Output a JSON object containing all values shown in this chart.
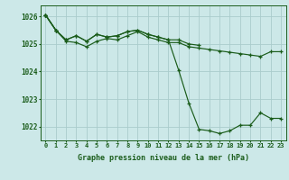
{
  "title": "Graphe pression niveau de la mer (hPa)",
  "bg_color": "#cce8e8",
  "grid_color": "#aacccc",
  "line_color": "#1a5c1a",
  "xlim": [
    -0.5,
    23.5
  ],
  "ylim": [
    1021.5,
    1026.4
  ],
  "yticks": [
    1022,
    1023,
    1024,
    1025,
    1026
  ],
  "xticks": [
    0,
    1,
    2,
    3,
    4,
    5,
    6,
    7,
    8,
    9,
    10,
    11,
    12,
    13,
    14,
    15,
    16,
    17,
    18,
    19,
    20,
    21,
    22,
    23
  ],
  "series": [
    [
      1026.05,
      1025.5,
      null,
      null,
      null,
      null,
      null,
      null,
      null,
      null,
      null,
      null,
      null,
      null,
      null,
      null,
      null,
      null,
      null,
      null,
      null,
      null,
      null,
      null
    ],
    [
      1026.05,
      1025.5,
      1025.1,
      1025.05,
      1024.9,
      1025.1,
      1025.2,
      1025.15,
      1025.3,
      1025.45,
      1025.25,
      1025.15,
      1025.05,
      1025.05,
      1024.9,
      1024.85,
      1024.8,
      1024.75,
      1024.7,
      1024.65,
      1024.6,
      1024.55,
      1024.72,
      1024.72
    ],
    [
      1026.05,
      1025.5,
      1025.15,
      1025.3,
      1025.1,
      1025.35,
      1025.25,
      1025.3,
      1025.45,
      1025.5,
      1025.35,
      1025.25,
      1025.15,
      1025.15,
      1025.0,
      1024.95,
      null,
      null,
      null,
      null,
      null,
      null,
      null,
      null
    ],
    [
      1026.05,
      1025.5,
      1025.15,
      1025.3,
      1025.1,
      1025.35,
      1025.25,
      1025.3,
      1025.45,
      1025.5,
      1025.35,
      1025.25,
      1025.15,
      1024.05,
      1022.85,
      1021.9,
      1021.85,
      1021.75,
      1021.85,
      1022.05,
      1022.05,
      1022.5,
      1022.3,
      1022.3
    ]
  ]
}
